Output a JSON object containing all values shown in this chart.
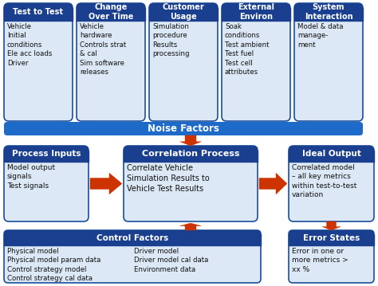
{
  "bg_color": "#ffffff",
  "header_blue_dark": "#1a3f8f",
  "header_blue_mid": "#1e5bbf",
  "box_fill": "#dce8f5",
  "box_border": "#1a4f9c",
  "noise_bar_color": "#1e6ac8",
  "arrow_color": "#cc3300",
  "text_dark": "#111111",
  "noise_boxes": [
    {
      "title": "Test to Test",
      "content": "Vehicle\nInitial\nconditions\nEle acc loads\nDriver"
    },
    {
      "title": "Change\nOver Time",
      "content": "Vehicle\nhardware\nControls strat\n& cal\nSim software\nreleases"
    },
    {
      "title": "Customer\nUsage",
      "content": "Simulation\nprocedure\nResults\nprocessing"
    },
    {
      "title": "External\nEnviron",
      "content": "Soak\nconditions\nTest ambient\nTest fuel\nTest cell\nattributes"
    },
    {
      "title": "System\nInteraction",
      "content": "Model & data\nmanage-\nment"
    }
  ],
  "noise_label": "Noise Factors",
  "process_inputs": {
    "title": "Process Inputs",
    "content": "Model output\nsignals\nTest signals"
  },
  "correlation": {
    "title": "Correlation Process",
    "content": "Correlate Vehicle\nSimulation Results to\nVehicle Test Results"
  },
  "ideal_output": {
    "title": "Ideal Output",
    "content": "Correlated model\n– all key metrics\nwithin test-to-test\nvariation"
  },
  "control_factors": {
    "title": "Control Factors",
    "content_left": "Physical model\nPhysical model param data\nControl strategy model\nControl strategy cal data",
    "content_right": "Driver model\nDriver model cal data\nEnvironment data"
  },
  "error_states": {
    "title": "Error States",
    "content": "Error in one or\nmore metrics >\nxx %"
  }
}
